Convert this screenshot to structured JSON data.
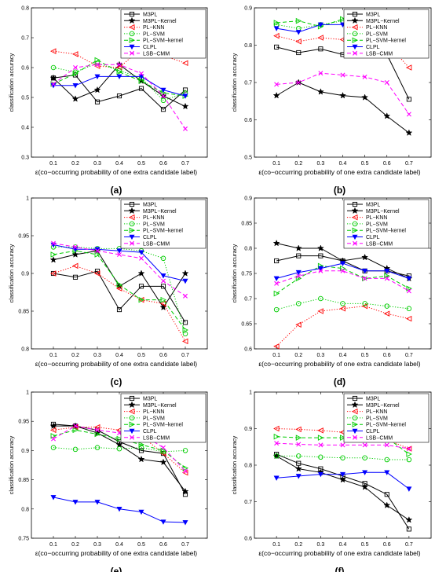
{
  "series_styles": [
    {
      "name": "M3PL",
      "color": "#000000",
      "dash": "",
      "marker": "square"
    },
    {
      "name": "M3PL−Kernel",
      "color": "#000000",
      "dash": "",
      "marker": "star"
    },
    {
      "name": "PL−KNN",
      "color": "#ff0000",
      "dash": "1.2,2",
      "marker": "tri-left"
    },
    {
      "name": "PL−SVM",
      "color": "#00cc00",
      "dash": "1.2,2",
      "marker": "circle"
    },
    {
      "name": "PL−SVM−kernel",
      "color": "#00cc00",
      "dash": "5,3",
      "marker": "tri-right"
    },
    {
      "name": "CLPL",
      "color": "#0000ff",
      "dash": "",
      "marker": "tri-down"
    },
    {
      "name": "LSB−CMM",
      "color": "#ff00ff",
      "dash": "5,3",
      "marker": "x"
    }
  ],
  "chart_data": [
    {
      "type": "line",
      "panel_label": "(a)",
      "ylabel": "classification accuracy",
      "xlabel": "ε(co−occurring probability of one extra candidate label)",
      "x": [
        0.1,
        0.2,
        0.3,
        0.4,
        0.5,
        0.6,
        0.7
      ],
      "xticks": [
        "0.1",
        "0.2",
        "0.3",
        "0.4",
        "0.5",
        "0.6",
        "0.7"
      ],
      "ylim": [
        0.3,
        0.8
      ],
      "yticks": [
        "0.3",
        "0.4",
        "0.5",
        "0.6",
        "0.7",
        "0.8"
      ],
      "series": [
        {
          "name": "M3PL",
          "values": [
            0.565,
            0.575,
            0.485,
            0.505,
            0.53,
            0.46,
            0.525
          ]
        },
        {
          "name": "M3PL−Kernel",
          "values": [
            0.565,
            0.495,
            0.525,
            0.61,
            0.555,
            0.505,
            0.47
          ]
        },
        {
          "name": "PL−KNN",
          "values": [
            0.655,
            0.645,
            0.605,
            0.6,
            0.665,
            0.64,
            0.615
          ]
        },
        {
          "name": "PL−SVM",
          "values": [
            0.6,
            0.585,
            0.615,
            0.59,
            0.565,
            0.49,
            0.515
          ]
        },
        {
          "name": "PL−SVM−kernel",
          "values": [
            0.545,
            0.58,
            0.625,
            0.585,
            0.555,
            0.515,
            0.505
          ]
        },
        {
          "name": "CLPL",
          "values": [
            0.54,
            0.54,
            0.57,
            0.57,
            0.57,
            0.525,
            0.505
          ]
        },
        {
          "name": "LSB−CMM",
          "values": [
            0.545,
            0.6,
            0.61,
            0.61,
            0.58,
            0.505,
            0.395
          ]
        }
      ]
    },
    {
      "type": "line",
      "panel_label": "(b)",
      "ylabel": "classification accuracy",
      "xlabel": "ε(co−occurring probability of one extra candidate label)",
      "x": [
        0.1,
        0.2,
        0.3,
        0.4,
        0.5,
        0.6,
        0.7
      ],
      "xticks": [
        "0.1",
        "0.2",
        "0.3",
        "0.4",
        "0.5",
        "0.6",
        "0.7"
      ],
      "ylim": [
        0.5,
        0.9
      ],
      "yticks": [
        "0.5",
        "0.6",
        "0.7",
        "0.8",
        "0.9"
      ],
      "series": [
        {
          "name": "M3PL",
          "values": [
            0.795,
            0.78,
            0.79,
            0.775,
            0.785,
            0.775,
            0.655
          ]
        },
        {
          "name": "M3PL−Kernel",
          "values": [
            0.665,
            0.7,
            0.675,
            0.665,
            0.66,
            0.61,
            0.565
          ]
        },
        {
          "name": "PL−KNN",
          "values": [
            0.825,
            0.81,
            0.82,
            0.815,
            0.805,
            0.805,
            0.74
          ]
        },
        {
          "name": "PL−SVM",
          "values": [
            0.855,
            0.845,
            0.855,
            0.865,
            0.855,
            0.865,
            0.835
          ]
        },
        {
          "name": "PL−SVM−kernel",
          "values": [
            0.86,
            0.865,
            0.85,
            0.87,
            0.86,
            0.855,
            0.84
          ]
        },
        {
          "name": "CLPL",
          "values": [
            0.845,
            0.835,
            0.855,
            0.855,
            0.858,
            0.858,
            0.858
          ]
        },
        {
          "name": "LSB−CMM",
          "values": [
            0.695,
            0.7,
            0.725,
            0.72,
            0.715,
            0.7,
            0.615
          ]
        }
      ]
    },
    {
      "type": "line",
      "panel_label": "(c)",
      "ylabel": "classification accuracy",
      "xlabel": "ε(co−occurring probability of one extra candidate label)",
      "x": [
        0.1,
        0.2,
        0.3,
        0.4,
        0.5,
        0.6,
        0.7
      ],
      "xticks": [
        "0.1",
        "0.2",
        "0.3",
        "0.4",
        "0.5",
        "0.6",
        "0.7"
      ],
      "ylim": [
        0.8,
        1.0
      ],
      "yticks": [
        "0.8",
        "0.85",
        "0.9",
        "0.95",
        "1"
      ],
      "series": [
        {
          "name": "M3PL",
          "values": [
            0.9,
            0.895,
            0.903,
            0.852,
            0.883,
            0.883,
            0.835
          ]
        },
        {
          "name": "M3PL−Kernel",
          "values": [
            0.918,
            0.925,
            0.93,
            0.883,
            0.9,
            0.855,
            0.9
          ]
        },
        {
          "name": "PL−KNN",
          "values": [
            0.9,
            0.91,
            0.9,
            0.88,
            0.865,
            0.86,
            0.81
          ]
        },
        {
          "name": "PL−SVM",
          "values": [
            0.935,
            0.935,
            0.933,
            0.933,
            0.93,
            0.92,
            0.82
          ]
        },
        {
          "name": "PL−SVM−kernel",
          "values": [
            0.925,
            0.93,
            0.925,
            0.885,
            0.865,
            0.865,
            0.825
          ]
        },
        {
          "name": "CLPL",
          "values": [
            0.938,
            0.932,
            0.932,
            0.93,
            0.928,
            0.897,
            0.89
          ]
        },
        {
          "name": "LSB−CMM",
          "values": [
            0.94,
            0.935,
            0.93,
            0.925,
            0.92,
            0.89,
            0.87
          ]
        }
      ]
    },
    {
      "type": "line",
      "panel_label": "(d)",
      "ylabel": "classification accuracy",
      "xlabel": "ε(co−occurring probability of one extra candidate label)",
      "x": [
        0.1,
        0.2,
        0.3,
        0.4,
        0.5,
        0.6,
        0.7
      ],
      "xticks": [
        "0.1",
        "0.2",
        "0.3",
        "0.4",
        "0.5",
        "0.6",
        "0.7"
      ],
      "ylim": [
        0.6,
        0.9
      ],
      "yticks": [
        "0.6",
        "0.65",
        "0.7",
        "0.75",
        "0.8",
        "0.85",
        "0.9"
      ],
      "series": [
        {
          "name": "M3PL",
          "values": [
            0.775,
            0.785,
            0.785,
            0.775,
            0.755,
            0.755,
            0.745
          ]
        },
        {
          "name": "M3PL−Kernel",
          "values": [
            0.81,
            0.8,
            0.8,
            0.775,
            0.782,
            0.76,
            0.74
          ]
        },
        {
          "name": "PL−KNN",
          "values": [
            0.605,
            0.648,
            0.675,
            0.68,
            0.685,
            0.67,
            0.66
          ]
        },
        {
          "name": "PL−SVM",
          "values": [
            0.678,
            0.69,
            0.7,
            0.69,
            0.69,
            0.685,
            0.68
          ]
        },
        {
          "name": "PL−SVM−kernel",
          "values": [
            0.71,
            0.74,
            0.765,
            0.76,
            0.74,
            0.745,
            0.72
          ]
        },
        {
          "name": "CLPL",
          "values": [
            0.74,
            0.752,
            0.76,
            0.77,
            0.755,
            0.755,
            0.74
          ]
        },
        {
          "name": "LSB−CMM",
          "values": [
            0.73,
            0.745,
            0.755,
            0.755,
            0.74,
            0.74,
            0.715
          ]
        }
      ]
    },
    {
      "type": "line",
      "panel_label": "(e)",
      "ylabel": "classification accuracy",
      "xlabel": "ε(co−occurring probability of one extra candidate label)",
      "x": [
        0.1,
        0.2,
        0.3,
        0.4,
        0.5,
        0.6,
        0.7
      ],
      "xticks": [
        "0.1",
        "0.2",
        "0.3",
        "0.4",
        "0.5",
        "0.6",
        "0.7"
      ],
      "ylim": [
        0.75,
        1.0
      ],
      "yticks": [
        "0.75",
        "0.8",
        "0.85",
        "0.9",
        "0.95",
        "1"
      ],
      "series": [
        {
          "name": "M3PL",
          "values": [
            0.945,
            0.942,
            0.935,
            0.915,
            0.9,
            0.895,
            0.825
          ]
        },
        {
          "name": "M3PL−Kernel",
          "values": [
            0.942,
            0.942,
            0.93,
            0.91,
            0.885,
            0.88,
            0.83
          ]
        },
        {
          "name": "PL−KNN",
          "values": [
            0.935,
            0.94,
            0.94,
            0.935,
            0.925,
            0.895,
            0.862
          ]
        },
        {
          "name": "PL−SVM",
          "values": [
            0.905,
            0.902,
            0.905,
            0.903,
            0.905,
            0.898,
            0.9
          ]
        },
        {
          "name": "PL−SVM−kernel",
          "values": [
            0.925,
            0.935,
            0.928,
            0.92,
            0.91,
            0.9,
            0.87
          ]
        },
        {
          "name": "CLPL",
          "values": [
            0.82,
            0.812,
            0.812,
            0.8,
            0.795,
            0.778,
            0.777
          ]
        },
        {
          "name": "LSB−CMM",
          "values": [
            0.92,
            0.942,
            0.935,
            0.93,
            0.928,
            0.905,
            0.865
          ]
        }
      ]
    },
    {
      "type": "line",
      "panel_label": "(f)",
      "ylabel": "classification accuracy",
      "xlabel": "ε(co−occurring probability of one extra candidate label)",
      "x": [
        0.1,
        0.2,
        0.3,
        0.4,
        0.5,
        0.6,
        0.7
      ],
      "xticks": [
        "0.1",
        "0.2",
        "0.3",
        "0.4",
        "0.5",
        "0.6",
        "0.7"
      ],
      "ylim": [
        0.6,
        1.0
      ],
      "yticks": [
        "0.6",
        "0.7",
        "0.8",
        "0.9",
        "1"
      ],
      "series": [
        {
          "name": "M3PL",
          "values": [
            0.83,
            0.805,
            0.79,
            0.77,
            0.75,
            0.72,
            0.625
          ]
        },
        {
          "name": "M3PL−Kernel",
          "values": [
            0.825,
            0.79,
            0.78,
            0.76,
            0.74,
            0.69,
            0.65
          ]
        },
        {
          "name": "PL−KNN",
          "values": [
            0.9,
            0.898,
            0.895,
            0.89,
            0.885,
            0.87,
            0.845
          ]
        },
        {
          "name": "PL−SVM",
          "values": [
            0.825,
            0.825,
            0.822,
            0.82,
            0.82,
            0.815,
            0.815
          ]
        },
        {
          "name": "PL−SVM−kernel",
          "values": [
            0.878,
            0.875,
            0.875,
            0.875,
            0.875,
            0.875,
            0.83
          ]
        },
        {
          "name": "CLPL",
          "values": [
            0.765,
            0.77,
            0.775,
            0.775,
            0.78,
            0.78,
            0.735
          ]
        },
        {
          "name": "LSB−CMM",
          "values": [
            0.86,
            0.857,
            0.855,
            0.855,
            0.855,
            0.855,
            0.845
          ]
        }
      ]
    }
  ]
}
